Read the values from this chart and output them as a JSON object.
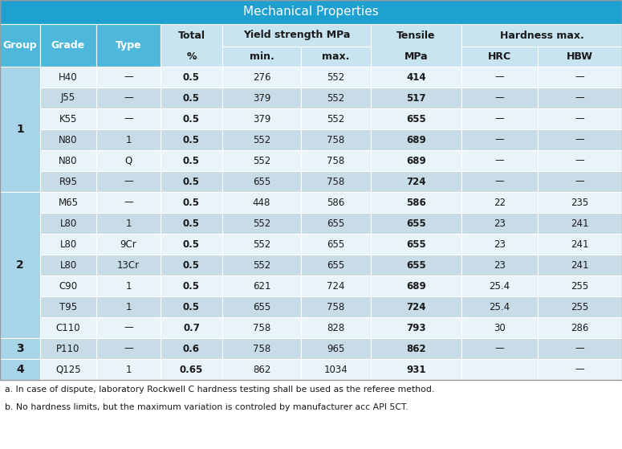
{
  "title": "Mechanical Properties",
  "title_bg": "#1EA0D0",
  "title_color": "white",
  "header_bg_blue": "#4DB8DC",
  "header_bg_light": "#C8E4F0",
  "group_col_bg": "#A8D4E8",
  "row_bg_even": "#E8F4FA",
  "row_bg_odd": "#C8DCE8",
  "border_color": "white",
  "rows": [
    [
      "H40",
      "—",
      "0.5",
      "276",
      "552",
      "414",
      "—",
      "—"
    ],
    [
      "J55",
      "—",
      "0.5",
      "379",
      "552",
      "517",
      "—",
      "—"
    ],
    [
      "K55",
      "—",
      "0.5",
      "379",
      "552",
      "655",
      "—",
      "—"
    ],
    [
      "N80",
      "1",
      "0.5",
      "552",
      "758",
      "689",
      "—",
      "—"
    ],
    [
      "N80",
      "Q",
      "0.5",
      "552",
      "758",
      "689",
      "—",
      "—"
    ],
    [
      "R95",
      "—",
      "0.5",
      "655",
      "758",
      "724",
      "—",
      "—"
    ],
    [
      "M65",
      "—",
      "0.5",
      "448",
      "586",
      "586",
      "22",
      "235"
    ],
    [
      "L80",
      "1",
      "0.5",
      "552",
      "655",
      "655",
      "23",
      "241"
    ],
    [
      "L80",
      "9Cr",
      "0.5",
      "552",
      "655",
      "655",
      "23",
      "241"
    ],
    [
      "L80",
      "13Cr",
      "0.5",
      "552",
      "655",
      "655",
      "23",
      "241"
    ],
    [
      "C90",
      "1",
      "0.5",
      "621",
      "724",
      "689",
      "25.4",
      "255"
    ],
    [
      "T95",
      "1",
      "0.5",
      "655",
      "758",
      "724",
      "25.4",
      "255"
    ],
    [
      "C110",
      "—",
      "0.7",
      "758",
      "828",
      "793",
      "30",
      "286"
    ],
    [
      "P110",
      "—",
      "0.6",
      "758",
      "965",
      "862",
      "—",
      "—"
    ],
    [
      "Q125",
      "1",
      "0.65",
      "862",
      "1034",
      "931",
      "",
      "—"
    ]
  ],
  "group_spans": [
    [
      "1",
      0,
      6
    ],
    [
      "2",
      6,
      13
    ],
    [
      "3",
      13,
      14
    ],
    [
      "4",
      14,
      15
    ]
  ],
  "footnotes": [
    "a. In case of dispute, laboratory Rockwell C hardness testing shall be used as the referee method.",
    "b. No hardness limits, but the maximum variation is controled by manufacturer acc API 5CT."
  ]
}
